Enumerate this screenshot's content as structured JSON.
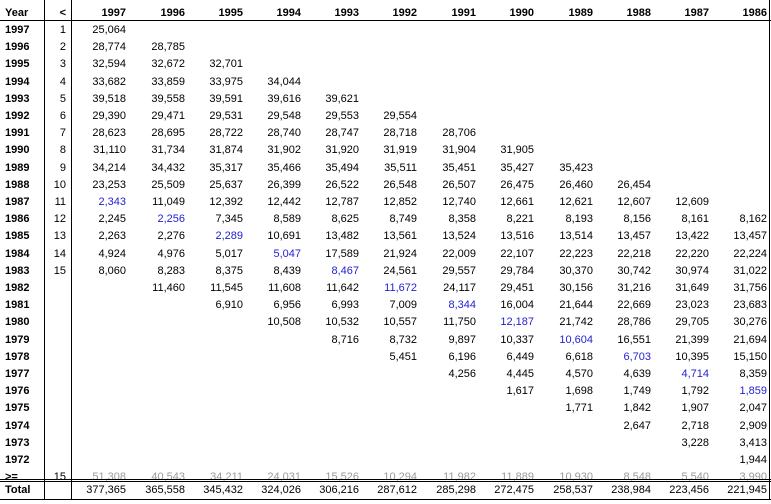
{
  "header": {
    "year_label": "Year",
    "lt_label": "<",
    "columns": [
      "1997",
      "1996",
      "1995",
      "1994",
      "1993",
      "1992",
      "1991",
      "1990",
      "1989",
      "1988",
      "1987",
      "1986"
    ]
  },
  "rows": [
    {
      "year": "1997",
      "n": "1",
      "cells": [
        "25,064",
        "",
        "",
        "",
        "",
        "",
        "",
        "",
        "",
        "",
        "",
        ""
      ]
    },
    {
      "year": "1996",
      "n": "2",
      "cells": [
        "28,774",
        "28,785",
        "",
        "",
        "",
        "",
        "",
        "",
        "",
        "",
        "",
        ""
      ]
    },
    {
      "year": "1995",
      "n": "3",
      "cells": [
        "32,594",
        "32,672",
        "32,701",
        "",
        "",
        "",
        "",
        "",
        "",
        "",
        "",
        ""
      ]
    },
    {
      "year": "1994",
      "n": "4",
      "cells": [
        "33,682",
        "33,859",
        "33,975",
        "34,044",
        "",
        "",
        "",
        "",
        "",
        "",
        "",
        ""
      ]
    },
    {
      "year": "1993",
      "n": "5",
      "cells": [
        "39,518",
        "39,558",
        "39,591",
        "39,616",
        "39,621",
        "",
        "",
        "",
        "",
        "",
        "",
        ""
      ]
    },
    {
      "year": "1992",
      "n": "6",
      "cells": [
        "29,390",
        "29,471",
        "29,531",
        "29,548",
        "29,553",
        "29,554",
        "",
        "",
        "",
        "",
        "",
        ""
      ]
    },
    {
      "year": "1991",
      "n": "7",
      "cells": [
        "28,623",
        "28,695",
        "28,722",
        "28,740",
        "28,747",
        "28,718",
        "28,706",
        "",
        "",
        "",
        "",
        ""
      ]
    },
    {
      "year": "1990",
      "n": "8",
      "cells": [
        "31,110",
        "31,734",
        "31,874",
        "31,902",
        "31,920",
        "31,919",
        "31,904",
        "31,905",
        "",
        "",
        "",
        ""
      ]
    },
    {
      "year": "1989",
      "n": "9",
      "cells": [
        "34,214",
        "34,432",
        "35,317",
        "35,466",
        "35,494",
        "35,511",
        "35,451",
        "35,427",
        "35,423",
        "",
        "",
        ""
      ]
    },
    {
      "year": "1988",
      "n": "10",
      "cells": [
        "23,253",
        "25,509",
        "25,637",
        "26,399",
        "26,522",
        "26,548",
        "26,507",
        "26,475",
        "26,460",
        "26,454",
        "",
        ""
      ]
    },
    {
      "year": "1987",
      "n": "11",
      "cells": [
        "2,343",
        "11,049",
        "12,392",
        "12,442",
        "12,787",
        "12,852",
        "12,740",
        "12,661",
        "12,621",
        "12,607",
        "12,609",
        ""
      ]
    },
    {
      "year": "1986",
      "n": "12",
      "cells": [
        "2,245",
        "2,256",
        "7,345",
        "8,589",
        "8,625",
        "8,749",
        "8,358",
        "8,221",
        "8,193",
        "8,156",
        "8,161",
        "8,162"
      ]
    },
    {
      "year": "1985",
      "n": "13",
      "cells": [
        "2,263",
        "2,276",
        "2,289",
        "10,691",
        "13,482",
        "13,561",
        "13,524",
        "13,516",
        "13,514",
        "13,457",
        "13,422",
        "13,457"
      ]
    },
    {
      "year": "1984",
      "n": "14",
      "cells": [
        "4,924",
        "4,976",
        "5,017",
        "5,047",
        "17,589",
        "21,924",
        "22,009",
        "22,107",
        "22,223",
        "22,218",
        "22,220",
        "22,224"
      ]
    },
    {
      "year": "1983",
      "n": "15",
      "cells": [
        "8,060",
        "8,283",
        "8,375",
        "8,439",
        "8,467",
        "24,561",
        "29,557",
        "29,784",
        "30,370",
        "30,742",
        "30,974",
        "31,022"
      ]
    },
    {
      "year": "1982",
      "n": "",
      "cells": [
        "",
        "11,460",
        "11,545",
        "11,608",
        "11,642",
        "11,672",
        "24,117",
        "29,451",
        "30,156",
        "31,216",
        "31,649",
        "31,756"
      ]
    },
    {
      "year": "1981",
      "n": "",
      "cells": [
        "",
        "",
        "6,910",
        "6,956",
        "6,993",
        "7,009",
        "8,344",
        "16,004",
        "21,644",
        "22,669",
        "23,023",
        "23,683"
      ]
    },
    {
      "year": "1980",
      "n": "",
      "cells": [
        "",
        "",
        "",
        "10,508",
        "10,532",
        "10,557",
        "11,750",
        "12,187",
        "21,742",
        "28,786",
        "29,705",
        "30,276"
      ]
    },
    {
      "year": "1979",
      "n": "",
      "cells": [
        "",
        "",
        "",
        "",
        "8,716",
        "8,732",
        "9,897",
        "10,337",
        "10,604",
        "16,551",
        "21,399",
        "21,694"
      ]
    },
    {
      "year": "1978",
      "n": "",
      "cells": [
        "",
        "",
        "",
        "",
        "",
        "5,451",
        "6,196",
        "6,449",
        "6,618",
        "6,703",
        "10,395",
        "15,150"
      ]
    },
    {
      "year": "1977",
      "n": "",
      "cells": [
        "",
        "",
        "",
        "",
        "",
        "",
        "4,256",
        "4,445",
        "4,570",
        "4,639",
        "4,714",
        "8,359"
      ]
    },
    {
      "year": "1976",
      "n": "",
      "cells": [
        "",
        "",
        "",
        "",
        "",
        "",
        "",
        "1,617",
        "1,698",
        "1,749",
        "1,792",
        "1,859"
      ]
    },
    {
      "year": "1975",
      "n": "",
      "cells": [
        "",
        "",
        "",
        "",
        "",
        "",
        "",
        "",
        "1,771",
        "1,842",
        "1,907",
        "2,047"
      ]
    },
    {
      "year": "1974",
      "n": "",
      "cells": [
        "",
        "",
        "",
        "",
        "",
        "",
        "",
        "",
        "",
        "2,647",
        "2,718",
        "2,909"
      ]
    },
    {
      "year": "1973",
      "n": "",
      "cells": [
        "",
        "",
        "",
        "",
        "",
        "",
        "",
        "",
        "",
        "",
        "3,228",
        "3,413"
      ]
    },
    {
      "year": "1972",
      "n": "",
      "cells": [
        "",
        "",
        "",
        "",
        "",
        "",
        "",
        "",
        "",
        "",
        "",
        "1,944"
      ]
    },
    {
      "year": ">=",
      "n": "15",
      "cells": [
        "51,308",
        "40,543",
        "34,211",
        "24,031",
        "15,526",
        "10,294",
        "11,982",
        "11,889",
        "10,930",
        "8,548",
        "5,540",
        "3,990"
      ]
    }
  ],
  "highlight_color": "#1f1fd0",
  "muted_color": "#9a9a9a",
  "total": {
    "label": "Total",
    "cells": [
      "377,365",
      "365,558",
      "345,432",
      "324,026",
      "306,216",
      "287,612",
      "285,298",
      "272,475",
      "258,537",
      "238,984",
      "223,456",
      "221,945"
    ]
  }
}
